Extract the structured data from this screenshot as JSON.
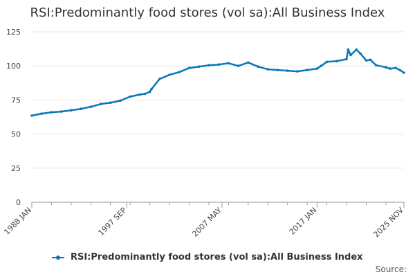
{
  "chart_data": {
    "type": "line",
    "title": "RSI:Predominantly food stores (vol sa):All Business Index",
    "xlabel": "",
    "ylabel": "",
    "ylim": [
      0,
      125
    ],
    "yticks": [
      0,
      25,
      50,
      75,
      100,
      125
    ],
    "xlim": [
      "1988-01",
      "2025-11"
    ],
    "xticks": [
      {
        "date": "1988-01",
        "label": "1988 JAN"
      },
      {
        "date": "1997-09",
        "label": "1997 SEP"
      },
      {
        "date": "2007-05",
        "label": "2007 MAY"
      },
      {
        "date": "2017-01",
        "label": "2017 JAN"
      },
      {
        "date": "2025-11",
        "label": "2025 NOV"
      }
    ],
    "grid": true,
    "legend": "bottom",
    "color": "#0a76b8",
    "series": [
      {
        "name": "RSI:Predominantly food stores (vol sa):All Business Index",
        "x": [
          "1988-01",
          "1989-01",
          "1990-01",
          "1991-01",
          "1992-01",
          "1993-01",
          "1994-01",
          "1995-01",
          "1996-01",
          "1997-01",
          "1998-01",
          "1999-01",
          "1999-07",
          "2000-01",
          "2000-03",
          "2001-01",
          "2002-01",
          "2003-01",
          "2004-01",
          "2005-01",
          "2006-01",
          "2007-01",
          "2008-01",
          "2009-01",
          "2010-01",
          "2011-01",
          "2012-01",
          "2013-01",
          "2014-01",
          "2015-01",
          "2016-01",
          "2017-01",
          "2017-06",
          "2018-01",
          "2019-01",
          "2020-01",
          "2020-03",
          "2020-06",
          "2021-01",
          "2021-06",
          "2022-01",
          "2022-06",
          "2023-01",
          "2024-01",
          "2024-06",
          "2025-01",
          "2025-06",
          "2025-11"
        ],
        "y": [
          63.5,
          65,
          66,
          66.5,
          67.5,
          68.5,
          70,
          72,
          73,
          74.5,
          77.5,
          79,
          79.5,
          81,
          83,
          90.5,
          93.5,
          95.5,
          98.5,
          99.5,
          100.5,
          101,
          102,
          100,
          102.5,
          99.5,
          97.5,
          97,
          96.5,
          96,
          97,
          98,
          100,
          103,
          103.5,
          105,
          112,
          108,
          112,
          109,
          104,
          104.5,
          100.5,
          99,
          98,
          98.5,
          97,
          95
        ]
      }
    ]
  },
  "source_label": "Source:"
}
